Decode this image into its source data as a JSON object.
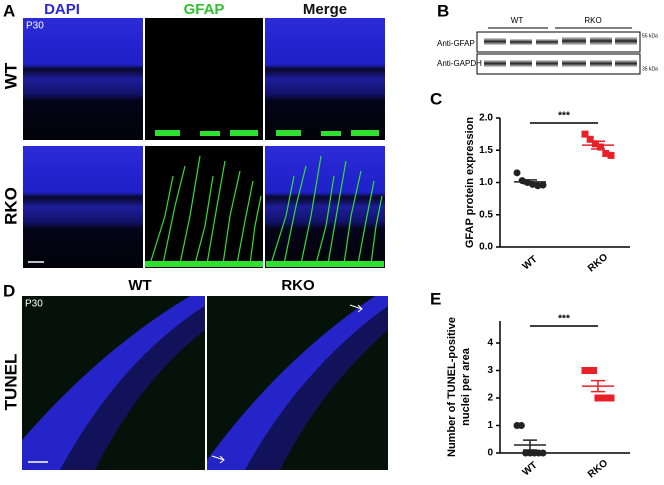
{
  "panels": {
    "A": {
      "letter": "A",
      "columns": [
        "DAPI",
        "GFAP",
        "Merge"
      ],
      "rows": [
        "WT",
        "RKO"
      ],
      "age": "P30"
    },
    "B": {
      "letter": "B",
      "groups": [
        "WT",
        "RKO"
      ],
      "bands": [
        "Anti-GFAP",
        "Anti-GAPDH"
      ],
      "markers": [
        "55 kDa",
        "35 kDa"
      ]
    },
    "D": {
      "letter": "D",
      "columns": [
        "WT",
        "RKO"
      ],
      "row": "TUNEL",
      "age": "P30"
    }
  },
  "chart_data": [
    {
      "type": "dot",
      "letter": "C",
      "y_label": "GFAP  protein expression",
      "categories": [
        "WT",
        "RKO"
      ],
      "groups": [
        {
          "color": "#222222",
          "marker": "circle",
          "values": [
            1.15,
            1.03,
            1.0,
            0.97,
            0.95,
            0.96
          ],
          "mean": 1.01,
          "sem": 0.03
        },
        {
          "color": "#e8202a",
          "marker": "square",
          "values": [
            1.75,
            1.67,
            1.6,
            1.55,
            1.45,
            1.42
          ],
          "mean": 1.58,
          "sem": 0.06
        }
      ],
      "ylim": [
        0,
        2
      ],
      "yticks": [
        {
          "value": 0,
          "label": "0.0"
        },
        {
          "value": 0.5,
          "label": "0.5"
        },
        {
          "value": 1,
          "label": "1.0"
        },
        {
          "value": 1.5,
          "label": "1.5"
        },
        {
          "value": 2,
          "label": "2.0"
        }
      ],
      "significance": "***"
    },
    {
      "type": "dot",
      "letter": "E",
      "y_label": [
        "Number of TUNEL-positive",
        "nuclei per area"
      ],
      "categories": [
        "WT",
        "RKO"
      ],
      "groups": [
        {
          "color": "#222222",
          "marker": "circle",
          "values": [
            1,
            1,
            0,
            0,
            0,
            0,
            0
          ],
          "mean": 0.29,
          "sem": 0.18
        },
        {
          "color": "#e8202a",
          "marker": "square",
          "values": [
            3,
            3,
            3,
            2,
            2,
            2,
            2
          ],
          "mean": 2.43,
          "sem": 0.2
        }
      ],
      "ylim": [
        0,
        4.8
      ],
      "yticks": [
        0,
        1,
        2,
        3,
        4
      ],
      "significance": "***"
    }
  ]
}
